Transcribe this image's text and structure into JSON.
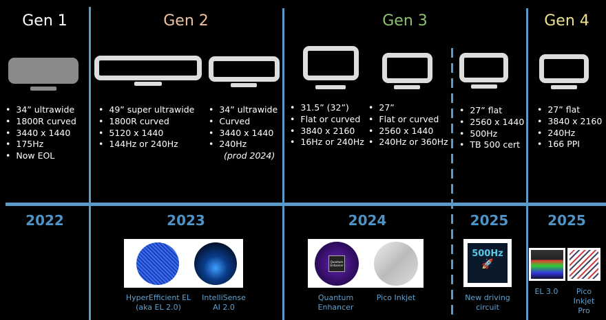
{
  "generations": [
    {
      "label": "Gen 1",
      "color": "#ffffff",
      "year": "2022",
      "specs": [
        "34” ultrawide",
        "1800R curved",
        "3440 x 1440",
        "175Hz",
        "Now EOL"
      ]
    },
    {
      "label": "Gen 2",
      "color": "#f0c3a0",
      "year": "2023",
      "specs_a": [
        "49” super ultrawide",
        "1800R curved",
        "5120 x 1440",
        "144Hz or 240Hz"
      ],
      "specs_b": [
        "34” ultrawide",
        "Curved",
        "3440 x 1440",
        "240Hz"
      ],
      "note_b": "(prod 2024)",
      "tech": [
        "HyperEfficient EL\n(aka EL 2.0)",
        "IntelliSense\nAI 2.0"
      ]
    },
    {
      "label": "Gen 3",
      "color": "#8cc26e",
      "year": "2024",
      "year2": "2025",
      "specs_a": [
        "31.5” (32”)",
        "Flat or curved",
        "3840 x 2160",
        "16Hz or 240Hz"
      ],
      "specs_b": [
        "27”",
        "Flat or curved",
        "2560 x 1440",
        "240Hz or 360Hz"
      ],
      "specs_c": [
        "27” flat",
        "2560 x 1440",
        "500Hz",
        "TB 500 cert"
      ],
      "tech": [
        "Quantum\nEnhancer",
        "Pico Inkjet",
        "New driving\ncircuit"
      ],
      "badge": "500Hz",
      "chip": "Quantum\nEnhancer"
    },
    {
      "label": "Gen 4",
      "color": "#ece48a",
      "year": "2025",
      "specs": [
        "27” flat",
        "3840 x 2160",
        "240Hz",
        "166 PPI"
      ],
      "tech": [
        "EL 3.0",
        "Pico\nInkjet\nPro"
      ]
    }
  ],
  "colors": {
    "divider": "#5b9bc8",
    "year": "#4f93c6",
    "caption": "#5fa3d2"
  }
}
